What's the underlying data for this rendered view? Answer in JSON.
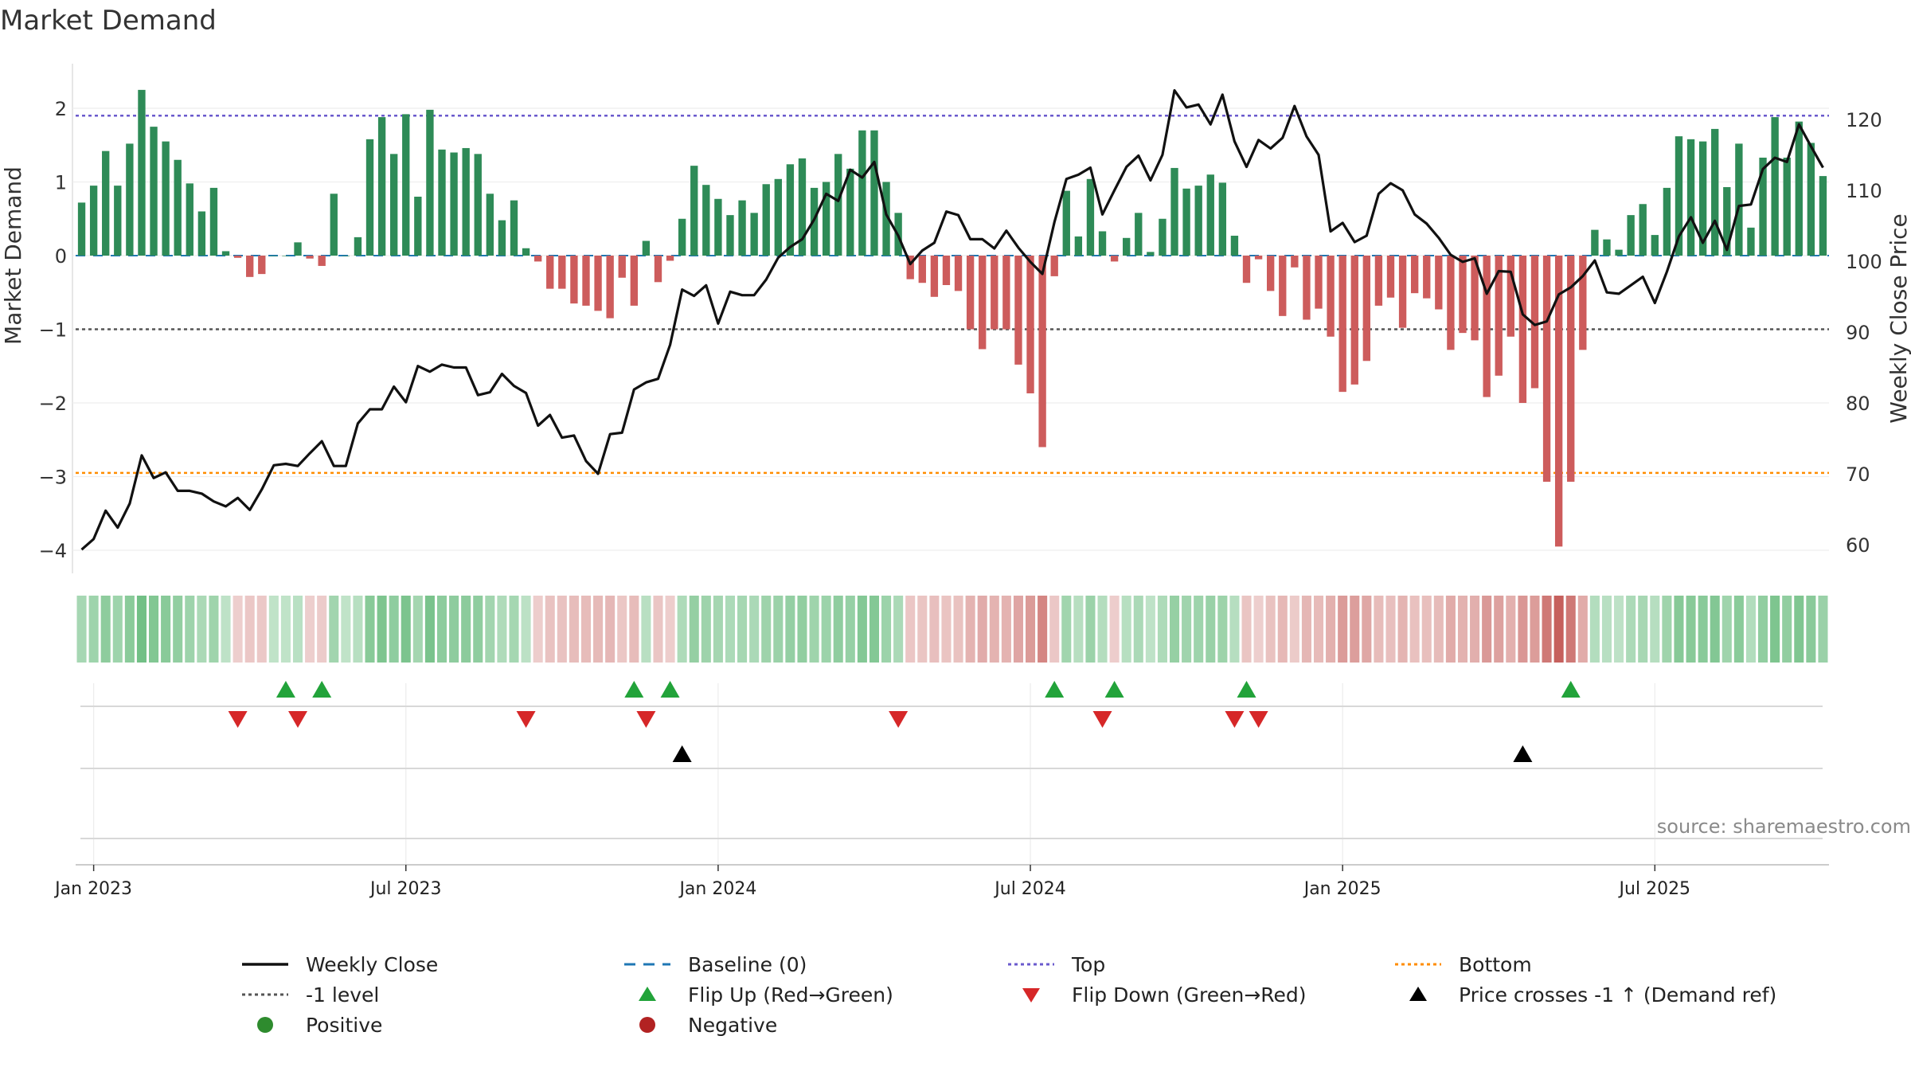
{
  "title": "Market Demand",
  "source": "source: sharemaestro.com",
  "colors": {
    "positive": "#2e8b57",
    "negative": "#cd5c5c",
    "close": "#111111",
    "baseline": "#1f77b4",
    "top": "#6a5acd",
    "bottom": "#ff8c00",
    "minus1": "#555555",
    "flip_up": "#22a33a",
    "flip_down": "#d62728",
    "cross": "#000000"
  },
  "chart_data": {
    "type": "bar",
    "title": "Market Demand",
    "ylabel": "Market Demand",
    "y2label": "Weekly Close Price",
    "ylim": [
      -4.3,
      2.6
    ],
    "y2lim": [
      58.7,
      128
    ],
    "y_ticks": [
      2,
      1,
      0,
      -1,
      -2,
      -3,
      -4
    ],
    "y_tick_labels": [
      "2",
      "1",
      "0",
      "−1",
      "−2",
      "−3",
      "−4"
    ],
    "y2_ticks": [
      120,
      110,
      100,
      90,
      80,
      70,
      60
    ],
    "y2_tick_labels": [
      "120",
      "110",
      "100",
      "90",
      "80",
      "70",
      "60"
    ],
    "x_tick_labels": [
      "Jan 2023",
      "Jul 2023",
      "Jan 2024",
      "Jul 2024",
      "Jan 2025",
      "Jul 2025"
    ],
    "x_tick_weeks": [
      1.5,
      27.5,
      53.5,
      79.5,
      105.5,
      131.5
    ],
    "levels": {
      "top": 1.9,
      "bottom": -2.95,
      "minus1": -1,
      "baseline": 0
    },
    "demand": [
      0.72,
      0.95,
      1.42,
      0.95,
      1.52,
      2.25,
      1.75,
      1.55,
      1.3,
      0.98,
      0.6,
      0.92,
      0.06,
      -0.03,
      -0.29,
      -0.25,
      0.0,
      0.0,
      0.18,
      -0.04,
      -0.14,
      0.84,
      0.0,
      0.25,
      1.58,
      1.88,
      1.38,
      1.92,
      0.8,
      1.98,
      1.44,
      1.4,
      1.46,
      1.38,
      0.84,
      0.48,
      0.75,
      0.1,
      -0.08,
      -0.45,
      -0.45,
      -0.65,
      -0.68,
      -0.75,
      -0.85,
      -0.3,
      -0.68,
      0.2,
      -0.36,
      -0.07,
      0.5,
      1.22,
      0.96,
      0.77,
      0.55,
      0.75,
      0.58,
      0.97,
      1.04,
      1.24,
      1.32,
      0.92,
      1.0,
      1.38,
      1.18,
      1.7,
      1.7,
      1.0,
      0.58,
      -0.32,
      -0.37,
      -0.56,
      -0.4,
      -0.48,
      -1.0,
      -1.27,
      -1.0,
      -1.0,
      -1.48,
      -1.87,
      -2.6,
      -0.28,
      0.88,
      0.26,
      1.04,
      0.33,
      -0.08,
      0.24,
      0.58,
      0.05,
      0.5,
      1.19,
      0.91,
      0.95,
      1.1,
      0.99,
      0.27,
      -0.37,
      -0.05,
      -0.48,
      -0.82,
      -0.16,
      -0.87,
      -0.72,
      -1.1,
      -1.85,
      -1.75,
      -1.43,
      -0.68,
      -0.57,
      -0.98,
      -0.51,
      -0.58,
      -0.73,
      -1.28,
      -1.05,
      -1.15,
      -1.92,
      -1.63,
      -1.1,
      -2.0,
      -1.8,
      -3.07,
      -3.95,
      -3.07,
      -1.28,
      0.35,
      0.22,
      0.08,
      0.55,
      0.7,
      0.28,
      0.92,
      1.62,
      1.58,
      1.55,
      1.72,
      0.93,
      1.52,
      0.38,
      1.33,
      1.88,
      1.33,
      1.82,
      1.53,
      1.08
    ],
    "close": [
      59.3,
      60.8,
      64.8,
      62.4,
      65.8,
      72.6,
      69.4,
      70.2,
      67.6,
      67.6,
      67.2,
      66.1,
      65.4,
      66.6,
      64.9,
      67.8,
      71.2,
      71.4,
      71.1,
      72.9,
      74.6,
      71.1,
      71.1,
      77.1,
      79.1,
      79.1,
      82.3,
      80.1,
      85.2,
      84.4,
      85.4,
      85.0,
      85.0,
      81.1,
      81.5,
      84.1,
      82.4,
      81.4,
      76.8,
      78.3,
      75.1,
      75.4,
      71.8,
      70.0,
      75.6,
      75.8,
      81.9,
      82.9,
      83.4,
      88.2,
      96.0,
      95.1,
      96.6,
      91.2,
      95.7,
      95.2,
      95.2,
      97.4,
      100.5,
      102.0,
      103.1,
      105.9,
      109.5,
      108.5,
      112.9,
      111.8,
      114.0,
      106.6,
      103.6,
      99.6,
      101.5,
      102.6,
      107.0,
      106.5,
      103.1,
      103.1,
      101.8,
      104.3,
      101.9,
      99.9,
      98.2,
      105.5,
      111.6,
      112.2,
      113.2,
      106.6,
      110.0,
      113.3,
      114.9,
      111.4,
      115.0,
      124.1,
      121.7,
      122.1,
      119.3,
      123.5,
      116.9,
      113.3,
      117.1,
      115.9,
      117.4,
      121.9,
      117.6,
      115.0,
      104.2,
      105.4,
      102.7,
      103.6,
      109.5,
      111.0,
      110.0,
      106.6,
      105.3,
      103.3,
      100.9,
      99.9,
      100.4,
      95.4,
      98.6,
      98.5,
      92.5,
      91.0,
      91.5,
      95.3,
      96.3,
      97.9,
      100.1,
      95.6,
      95.4,
      96.6,
      97.8,
      94.1,
      98.5,
      103.5,
      106.2,
      102.6,
      105.7,
      101.6,
      107.8,
      108.0,
      113.0,
      114.6,
      114.0,
      119.3,
      116.2,
      113.2
    ],
    "flip_up_weeks": [
      17,
      20,
      46,
      49,
      81,
      86,
      97,
      124
    ],
    "flip_down_weeks": [
      13,
      18,
      37,
      47,
      68,
      85,
      96,
      98
    ],
    "cross_up_weeks": [
      50,
      120
    ]
  },
  "legend": [
    {
      "label": "Weekly Close",
      "marker": "line-solid",
      "color": "#111111"
    },
    {
      "label": "Baseline (0)",
      "marker": "line-dash",
      "color": "#1f77b4"
    },
    {
      "label": "Top",
      "marker": "line-dot",
      "color": "#6a5acd"
    },
    {
      "label": "Bottom",
      "marker": "line-dot",
      "color": "#ff8c00"
    },
    {
      "label": "-1 level",
      "marker": "line-dot",
      "color": "#555555"
    },
    {
      "label": "Flip Up (Red→Green)",
      "marker": "triangle-up",
      "color": "#22a33a"
    },
    {
      "label": "Flip Down (Green→Red)",
      "marker": "triangle-down",
      "color": "#d62728"
    },
    {
      "label": "Price crosses -1 ↑ (Demand ref)",
      "marker": "triangle-up",
      "color": "#000000"
    },
    {
      "label": "Positive",
      "marker": "circle",
      "color": "#2e8b2e"
    },
    {
      "label": "Negative",
      "marker": "circle",
      "color": "#b22222"
    }
  ]
}
